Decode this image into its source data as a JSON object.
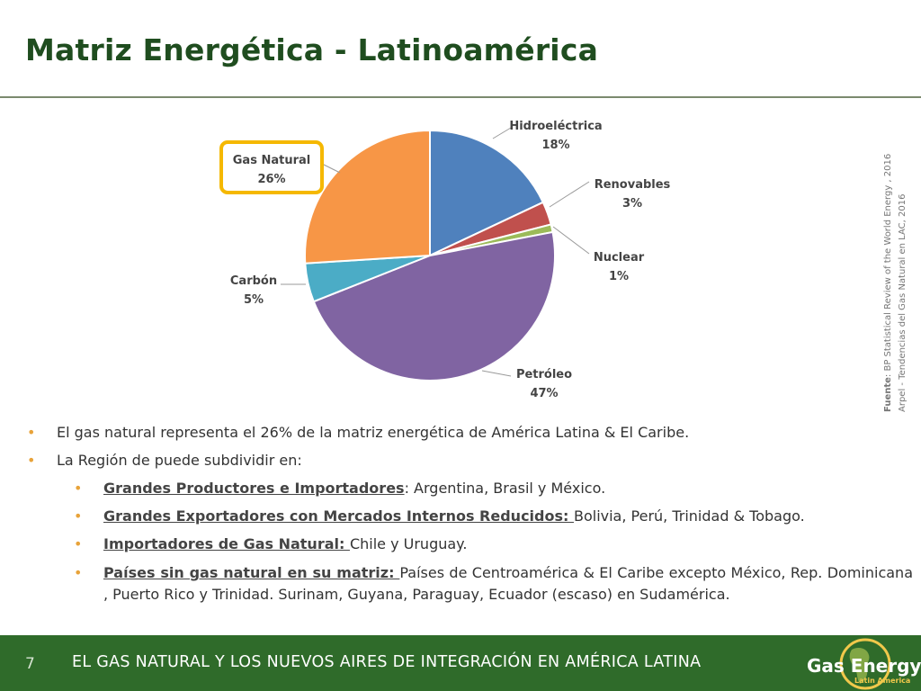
{
  "title": "Matriz Energética - Latinoamérica",
  "chart_data": {
    "type": "pie",
    "start": "top, clockwise",
    "slices": [
      {
        "label": "Hidroeléctrica",
        "value": 18,
        "pct_label": "18%",
        "color": "#4f81bd"
      },
      {
        "label": "Renovables",
        "value": 3,
        "pct_label": "3%",
        "color": "#c0504d"
      },
      {
        "label": "Nuclear",
        "value": 1,
        "pct_label": "1%",
        "color": "#9bbb59"
      },
      {
        "label": "Petróleo",
        "value": 47,
        "pct_label": "47%",
        "color": "#8064a2"
      },
      {
        "label": "Carbón",
        "value": 5,
        "pct_label": "5%",
        "color": "#4bacc6"
      },
      {
        "label": "Gas Natural",
        "value": 26,
        "pct_label": "26%",
        "color": "#f79646"
      }
    ],
    "highlight": {
      "label": "Gas Natural",
      "color": "#f5b800"
    }
  },
  "source": {
    "label": "Fuente",
    "line1": ": BP Statistical Review of the World Energy , 2016",
    "line2": "Arpel - Tendencias del Gas Natural en LAC, 2016"
  },
  "bullets": {
    "b1": "El gas natural representa el 26% de la matriz energética de América Latina & El Caribe.",
    "b2": "La Región de puede subdividir en:",
    "s1_term": "Grandes Productores e Importadores",
    "s1_text": ": Argentina, Brasil y México.",
    "s2_term": "Grandes Exportadores con Mercados Internos Reducidos: ",
    "s2_text": "Bolivia, Perú, Trinidad & Tobago.",
    "s3_term": "Importadores de Gas Natural: ",
    "s3_text": "Chile y Uruguay.",
    "s4_term": "Países sin gas natural en su matriz: ",
    "s4_text": "Países de Centroamérica & El Caribe excepto México, Rep. Dominicana , Puerto Rico y Trinidad. Surinam, Guyana, Paraguay, Ecuador (escaso) en Sudamérica."
  },
  "footer": {
    "page_number": "7",
    "text": "EL GAS NATURAL Y LOS NUEVOS AIRES DE INTEGRACIÓN EN AMÉRICA LATINA",
    "logo_name": "Gas Energy",
    "logo_sub": "Latin America",
    "bar_color": "#2f6b2a"
  }
}
